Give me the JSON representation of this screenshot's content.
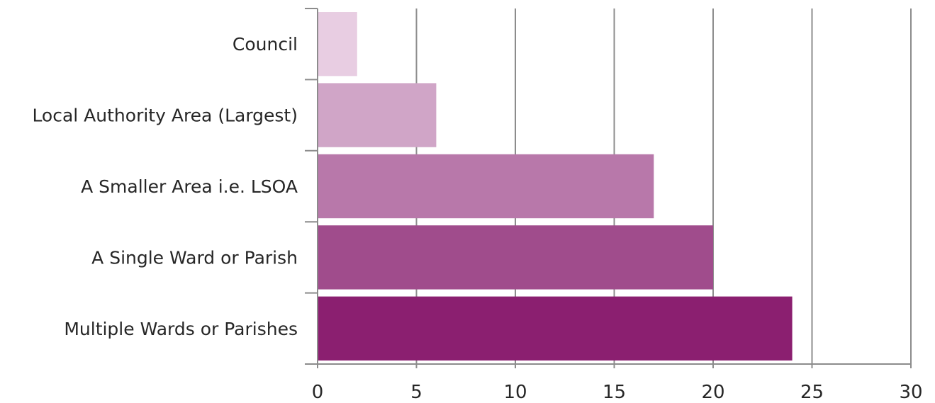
{
  "chart_data": {
    "type": "bar",
    "orientation": "horizontal",
    "categories": [
      "Council",
      "Local Authority Area (Largest)",
      "A Smaller Area i.e. LSOA",
      "A Single Ward or Parish",
      "Multiple Wards or Parishes"
    ],
    "values": [
      2,
      6,
      17,
      20,
      24
    ],
    "colors": [
      "#e8cde2",
      "#d0a5c7",
      "#b878aa",
      "#a04c8c",
      "#8b1f70"
    ],
    "title": "",
    "xlabel": "",
    "ylabel": "",
    "xlim": [
      0,
      30
    ],
    "xticks": [
      "0",
      "5",
      "10",
      "15",
      "20",
      "25",
      "30"
    ],
    "xtick_values": [
      0,
      5,
      10,
      15,
      20,
      25,
      30
    ],
    "grid": "vertical",
    "legend": "none"
  }
}
